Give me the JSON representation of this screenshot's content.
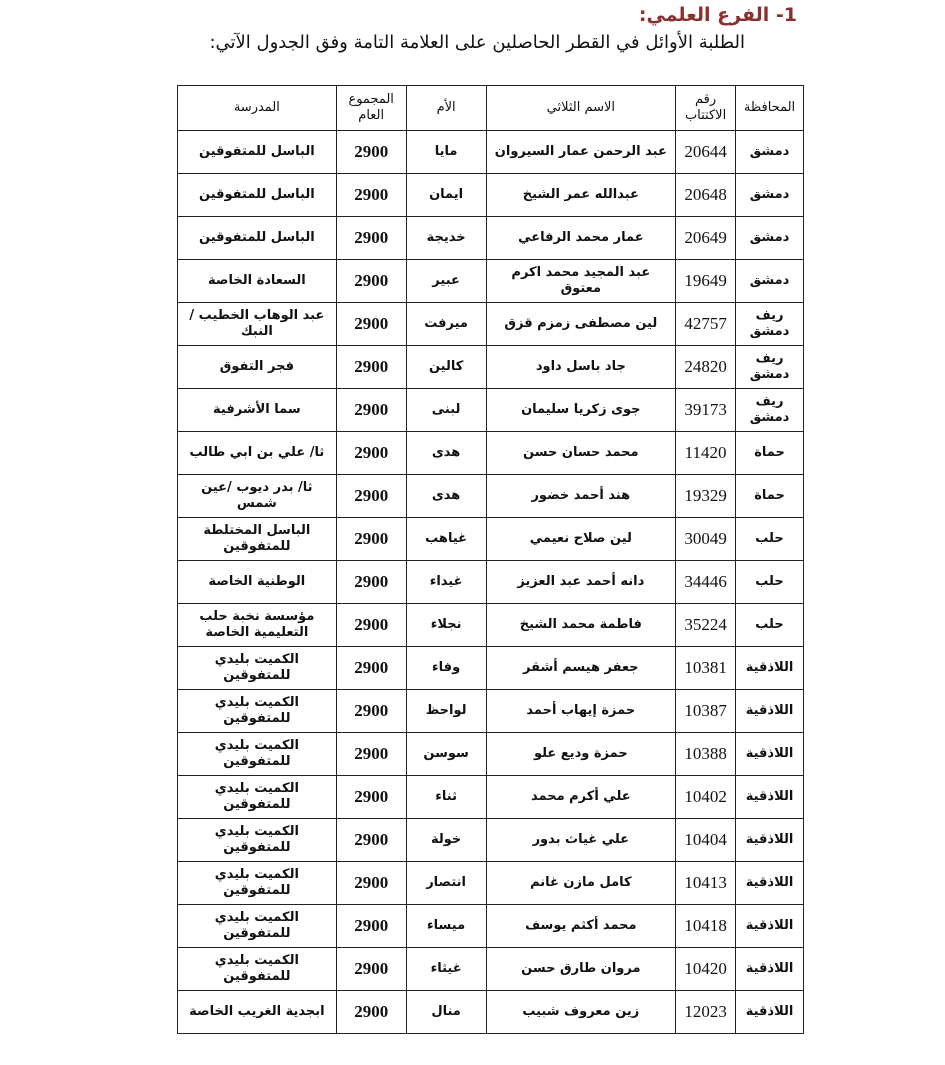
{
  "heading": "1- الفرع العلمي:",
  "intro": "الطلبة الأوائل في القطر الحاصلين على العلامة التامة وفق الجدول الآتي:",
  "table": {
    "headers": [
      "المحافظة",
      "رقم الاكتتاب",
      "الاسم الثلاثي",
      "الأم",
      "المجموع العام",
      "المدرسة"
    ],
    "rows": [
      [
        "دمشق",
        "20644",
        "عبد الرحمن عمار السيروان",
        "مايا",
        "2900",
        "الباسل للمتفوقين"
      ],
      [
        "دمشق",
        "20648",
        "عبدالله عمر الشيخ",
        "ايمان",
        "2900",
        "الباسل للمتفوقين"
      ],
      [
        "دمشق",
        "20649",
        "عمار محمد الرفاعي",
        "خديجة",
        "2900",
        "الباسل للمتفوقين"
      ],
      [
        "دمشق",
        "19649",
        "عبد المجيد محمد اكرم معتوق",
        "عبير",
        "2900",
        "السعادة الخاصة"
      ],
      [
        "ريف دمشق",
        "42757",
        "لين مصطفى زمزم قزق",
        "ميرفت",
        "2900",
        "عبد الوهاب الخطيب /النبك"
      ],
      [
        "ريف دمشق",
        "24820",
        "جاد باسل داود",
        "كالين",
        "2900",
        "فجر التفوق"
      ],
      [
        "ريف دمشق",
        "39173",
        "جوى زكريا سليمان",
        "لبنى",
        "2900",
        "سما الأشرفية"
      ],
      [
        "حماة",
        "11420",
        "محمد حسان حسن",
        "هدى",
        "2900",
        "ثا/ علي بن ابي طالب"
      ],
      [
        "حماة",
        "19329",
        "هند أحمد خضور",
        "هدى",
        "2900",
        "ثا/ بدر ديوب /عين شمس"
      ],
      [
        "حلب",
        "30049",
        "لين صلاح نعيمي",
        "غياهب",
        "2900",
        "الباسل المختلطة للمتفوقين"
      ],
      [
        "حلب",
        "34446",
        "دانه أحمد عبد العزيز",
        "غيداء",
        "2900",
        "الوطنية الخاصة"
      ],
      [
        "حلب",
        "35224",
        "فاطمة محمد الشيخ",
        "نجلاء",
        "2900",
        "مؤسسة نخبة حلب التعليمية الخاصة"
      ],
      [
        "اللاذقية",
        "10381",
        "جعفر هيسم أشقر",
        "وفاء",
        "2900",
        "الكميت بليدي للمتفوقين"
      ],
      [
        "اللاذقية",
        "10387",
        "حمزة إيهاب أحمد",
        "لواحظ",
        "2900",
        "الكميت بليدي للمتفوقين"
      ],
      [
        "اللاذقية",
        "10388",
        "حمزة وديع علو",
        "سوسن",
        "2900",
        "الكميت بليدي للمتفوقين"
      ],
      [
        "اللاذقية",
        "10402",
        "علي أكرم محمد",
        "ثناء",
        "2900",
        "الكميت بليدي للمتفوقين"
      ],
      [
        "اللاذقية",
        "10404",
        "علي غياث بدور",
        "خولة",
        "2900",
        "الكميت بليدي للمتفوقين"
      ],
      [
        "اللاذقية",
        "10413",
        "كامل مازن غانم",
        "انتصار",
        "2900",
        "الكميت بليدي للمتفوقين"
      ],
      [
        "اللاذقية",
        "10418",
        "محمد أكثم يوسف",
        "ميساء",
        "2900",
        "الكميت بليدي للمتفوقين"
      ],
      [
        "اللاذقية",
        "10420",
        "مروان طارق حسن",
        "غيثاء",
        "2900",
        "الكميت بليدي للمتفوقين"
      ],
      [
        "اللاذقية",
        "12023",
        "زين معروف شبيب",
        "منال",
        "2900",
        "ابجدية الغريب الخاصة"
      ]
    ]
  }
}
